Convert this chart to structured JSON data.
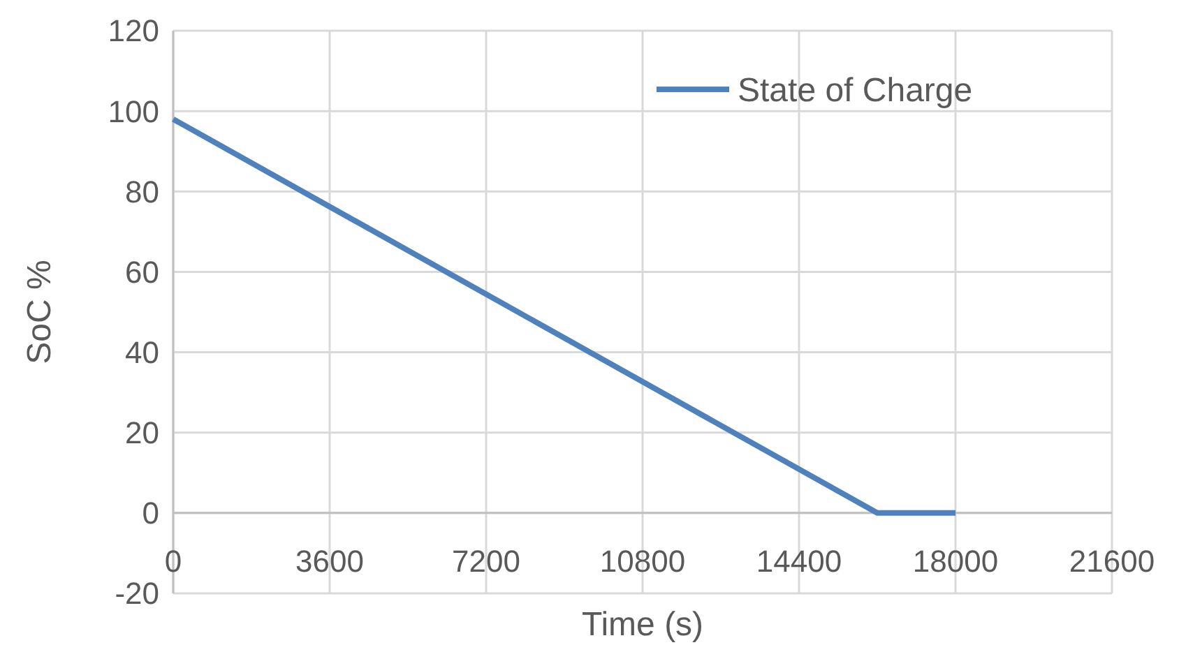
{
  "chart_data": {
    "type": "line",
    "xlabel": "Time (s)",
    "ylabel": "SoC %",
    "xlim": [
      0,
      21600
    ],
    "xticks": [
      0,
      3600,
      7200,
      10800,
      14400,
      18000,
      21600
    ],
    "ylim": [
      -20,
      120
    ],
    "yticks": [
      -20,
      0,
      20,
      40,
      60,
      80,
      100,
      120
    ],
    "grid": true,
    "legend": "top right",
    "line_style": "solid",
    "marker": "none",
    "series": [
      {
        "name": "State of Charge",
        "color": "#4f81bd",
        "x": [
          0,
          16200,
          18000
        ],
        "values": [
          98,
          0,
          0
        ]
      }
    ]
  }
}
